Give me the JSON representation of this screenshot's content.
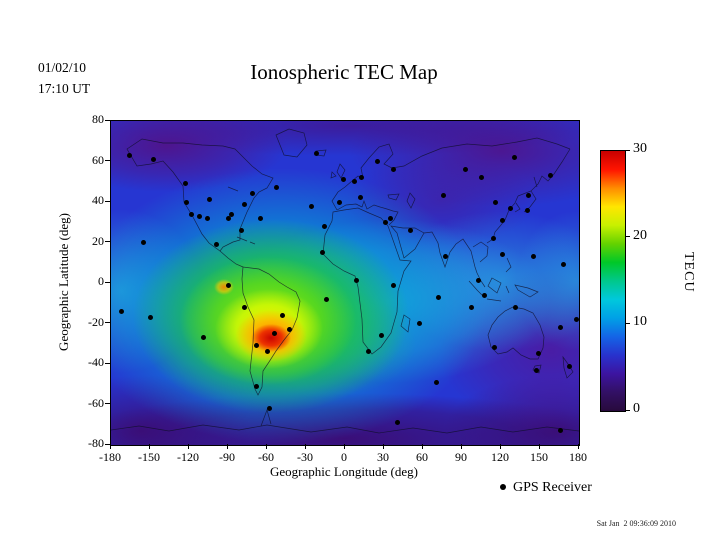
{
  "header": {
    "date": "01/02/10",
    "time": "17:10 UT"
  },
  "title": "Ionospheric TEC Map",
  "legend": {
    "gps_label": "GPS Receiver"
  },
  "footer": {
    "timestamp": "Sat Jan  2 09:36:09 2010"
  },
  "chart_data": {
    "type": "heatmap",
    "title": "Ionospheric TEC Map",
    "xlabel": "Geographic Longitude (deg)",
    "ylabel": "Geographic Latitude (deg)",
    "xlim": [
      -180,
      180
    ],
    "ylim": [
      -80,
      80
    ],
    "xticks": [
      -180,
      -150,
      -120,
      -90,
      -60,
      -30,
      0,
      30,
      60,
      90,
      120,
      150,
      180
    ],
    "yticks": [
      80,
      60,
      40,
      20,
      0,
      -20,
      -40,
      -60,
      -80
    ],
    "grid": false,
    "colorbar": {
      "label": "TECU",
      "min": 0,
      "max": 30,
      "ticks": [
        30,
        20,
        10,
        0
      ],
      "scale_colors_top_to_bottom": [
        "#c80000",
        "#ff1400",
        "#ff8c00",
        "#ffe600",
        "#c8f000",
        "#64d200",
        "#00c828",
        "#00c88c",
        "#00c8dc",
        "#00a0e6",
        "#1464e6",
        "#2832cd",
        "#3c14a0",
        "#321064",
        "#280a3c"
      ]
    },
    "hotspots": [
      {
        "lon": -57,
        "lat": -27,
        "peak_tecu": 30
      },
      {
        "lon": -93,
        "lat": -2,
        "peak_tecu": 26
      }
    ],
    "background_levels": {
      "ocean_tecu": 8,
      "tropics_tecu": 13,
      "polar_tecu": 1
    },
    "gps_receivers": [
      [
        -166,
        63
      ],
      [
        -147,
        61
      ],
      [
        -123,
        49
      ],
      [
        -122,
        40
      ],
      [
        -118,
        34
      ],
      [
        -112,
        33
      ],
      [
        -106,
        32
      ],
      [
        -104,
        41
      ],
      [
        -90,
        32
      ],
      [
        -87,
        34
      ],
      [
        -80,
        26
      ],
      [
        -77,
        39
      ],
      [
        -71,
        44
      ],
      [
        -53,
        47
      ],
      [
        -22,
        64
      ],
      [
        -155,
        20
      ],
      [
        -99,
        19
      ],
      [
        -90,
        -1
      ],
      [
        -77,
        -12
      ],
      [
        -68,
        -31
      ],
      [
        -60,
        -34
      ],
      [
        -54,
        -25
      ],
      [
        -48,
        -16
      ],
      [
        -43,
        -23
      ],
      [
        -68,
        -51
      ],
      [
        -14,
        -8
      ],
      [
        -16,
        28
      ],
      [
        -17,
        15
      ],
      [
        -26,
        38
      ],
      [
        -65,
        32
      ],
      [
        -4,
        40
      ],
      [
        -1,
        51
      ],
      [
        7,
        50
      ],
      [
        13,
        52
      ],
      [
        25,
        60
      ],
      [
        12,
        42
      ],
      [
        37,
        56
      ],
      [
        28,
        -26
      ],
      [
        18,
        -34
      ],
      [
        9,
        1
      ],
      [
        37,
        -1
      ],
      [
        31,
        30
      ],
      [
        35,
        32
      ],
      [
        50,
        26
      ],
      [
        77,
        13
      ],
      [
        76,
        43
      ],
      [
        93,
        56
      ],
      [
        105,
        52
      ],
      [
        130,
        62
      ],
      [
        158,
        53
      ],
      [
        116,
        40
      ],
      [
        121,
        31
      ],
      [
        114,
        22
      ],
      [
        127,
        37
      ],
      [
        141,
        43
      ],
      [
        140,
        36
      ],
      [
        103,
        1
      ],
      [
        107,
        -6
      ],
      [
        121,
        14
      ],
      [
        145,
        13
      ],
      [
        115,
        -32
      ],
      [
        131,
        -12
      ],
      [
        149,
        -35
      ],
      [
        147,
        -43
      ],
      [
        166,
        -22
      ],
      [
        173,
        -41
      ],
      [
        178,
        -18
      ],
      [
        -150,
        -17
      ],
      [
        -172,
        -14
      ],
      [
        -109,
        -27
      ],
      [
        168,
        9
      ],
      [
        -58,
        -62
      ],
      [
        166,
        -73
      ],
      [
        40,
        -69
      ],
      [
        72,
        -7
      ],
      [
        57,
        -20
      ],
      [
        70,
        -49
      ],
      [
        97,
        -12
      ]
    ]
  }
}
